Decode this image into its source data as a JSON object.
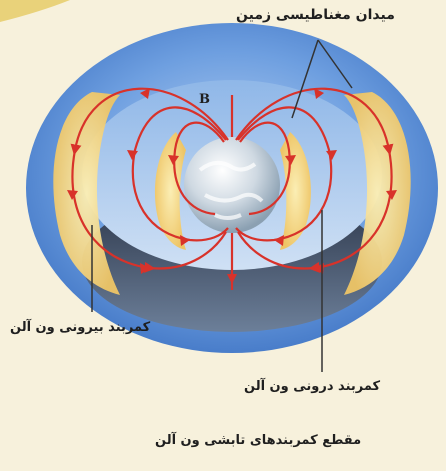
{
  "labels": {
    "magnetic_field": "میدان مغناطیسی زمین",
    "outer_belt": "کمربند بیرونی ون آلن",
    "inner_belt": "کمربند درونی ون آلن",
    "caption": "مقطع کمربندهای تابشی ون آلن",
    "field_symbol": "B"
  },
  "colors": {
    "background": "#f7f1dc",
    "torus": "#5b8fd6",
    "belt": "#f4d98a",
    "field_lines": "#d8322a",
    "earth": "#dde6ee"
  }
}
